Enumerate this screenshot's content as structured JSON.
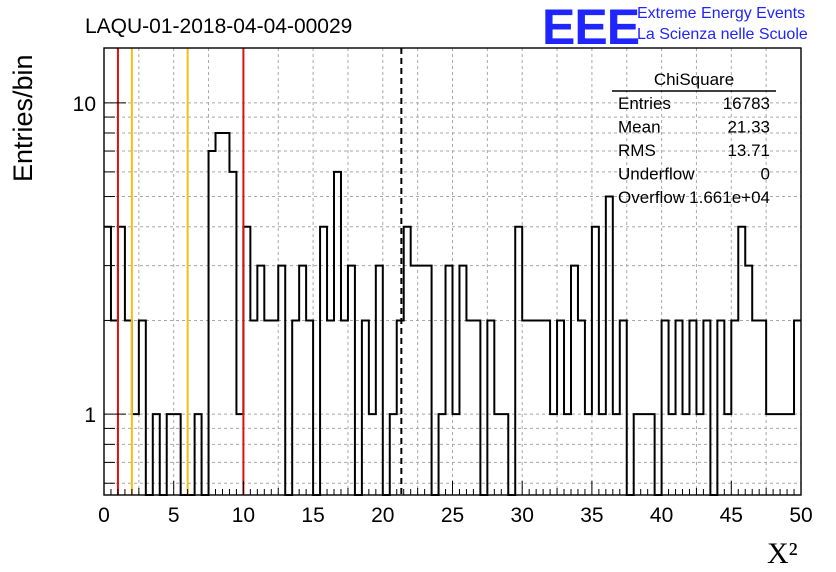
{
  "logo": {
    "mark": "EEE",
    "line1": "Extreme Energy Events",
    "line2": "La Scienza nelle Scuole",
    "color": "#1f25ff"
  },
  "chart_data": {
    "type": "bar",
    "title": "LAQU-01-2018-04-04-00029",
    "xlabel": "X²",
    "ylabel": "Entries/bin",
    "xlim": [
      0,
      50
    ],
    "ylim": [
      0.55,
      15
    ],
    "yscale": "log",
    "grid": true,
    "x_ticks": [
      "0",
      "5",
      "10",
      "15",
      "20",
      "25",
      "30",
      "35",
      "40",
      "45",
      "50"
    ],
    "y_ticks": [
      "1",
      "10"
    ],
    "bin_width": 0.5,
    "values": [
      4,
      2,
      4,
      2,
      1,
      2,
      0,
      1,
      0,
      1,
      1,
      0,
      0,
      1,
      0,
      7,
      8,
      8,
      6,
      1,
      4,
      2,
      3,
      2,
      2,
      3,
      0,
      2,
      3,
      2,
      0,
      4,
      2,
      6,
      2,
      3,
      0,
      2,
      1,
      3,
      0,
      1,
      2,
      4,
      3,
      3,
      3,
      0,
      1,
      3,
      1,
      3,
      2,
      2,
      0,
      2,
      1,
      1,
      0,
      4,
      2,
      2,
      2,
      2,
      1,
      2,
      1,
      3,
      2,
      1,
      4,
      1,
      5,
      1,
      2,
      0,
      1,
      1,
      1,
      0,
      2,
      1,
      2,
      1,
      2,
      1,
      2,
      0,
      2,
      1,
      2,
      4,
      3,
      2,
      2,
      1,
      1,
      1,
      1,
      2
    ],
    "lines": [
      {
        "x": 1,
        "color": "#e01010",
        "style": "solid"
      },
      {
        "x": 10,
        "color": "#e01010",
        "style": "solid"
      },
      {
        "x": 2,
        "color": "#f2c010",
        "style": "solid"
      },
      {
        "x": 6,
        "color": "#f2c010",
        "style": "solid"
      },
      {
        "x": 21.33,
        "color": "#000000",
        "style": "dashed"
      }
    ],
    "stats": {
      "name": "ChiSquare",
      "rows": [
        {
          "label": "Entries",
          "value": "16783"
        },
        {
          "label": "Mean",
          "value": "21.33"
        },
        {
          "label": "RMS",
          "value": "13.71"
        },
        {
          "label": "Underflow",
          "value": "0"
        },
        {
          "label": "Overflow",
          "value": "1.661e+04"
        }
      ]
    }
  }
}
